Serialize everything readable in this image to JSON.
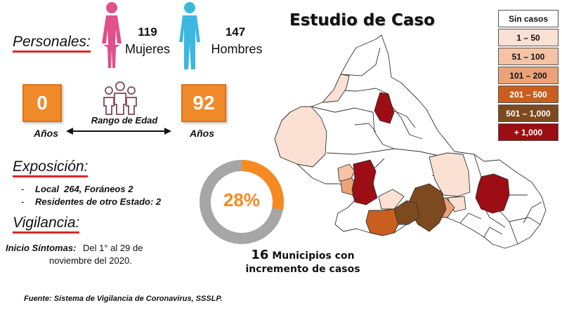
{
  "title": "Estudio de Caso",
  "personales": {
    "label": "Personales:",
    "mujeres_count": "119",
    "mujeres_label": "Mujeres",
    "hombres_count": "147",
    "hombres_label": "Hombres",
    "colors": {
      "female": "#e0508a",
      "male": "#3cb8e0"
    }
  },
  "edad": {
    "min": "0",
    "max": "92",
    "min_unit": "Años",
    "max_unit": "Años",
    "range_label": "Rango de Edad"
  },
  "exposicion": {
    "label": "Exposición:",
    "items": [
      "Local  264, Foráneos 2",
      "Residentes de otro Estado: 2"
    ]
  },
  "vigilancia": {
    "label": "Vigilancia:",
    "inicio_label": "Inicio Síntomas:",
    "inicio_text_1": "Del 1° al 29 de",
    "inicio_text_2": "noviembre del 2020."
  },
  "donut": {
    "percent": 28,
    "percent_text": "28%",
    "colors": {
      "filled": "#f58a22",
      "rest": "#a6a6a6"
    }
  },
  "municipios": {
    "count": "16",
    "text_1": "Municipios con",
    "text_2": "incremento de casos"
  },
  "legend": [
    {
      "label": "Sin casos",
      "color": "#ffffff",
      "text_color": "#111111"
    },
    {
      "label": "1 – 50",
      "color": "#fbe1d3",
      "text_color": "#111111"
    },
    {
      "label": "51 – 100",
      "color": "#f6c3a4",
      "text_color": "#111111"
    },
    {
      "label": "101 – 200",
      "color": "#eca277",
      "text_color": "#111111"
    },
    {
      "label": "201 – 500",
      "color": "#c85f1e",
      "text_color": "#ffffff"
    },
    {
      "label": "501 – 1,000",
      "color": "#7d4a20",
      "text_color": "#ffffff"
    },
    {
      "label": "+ 1,000",
      "color": "#9c0d14",
      "text_color": "#ffffff"
    }
  ],
  "source": "Fuente: Sistema de Vigilancia de Coronavirus, SSSLP."
}
